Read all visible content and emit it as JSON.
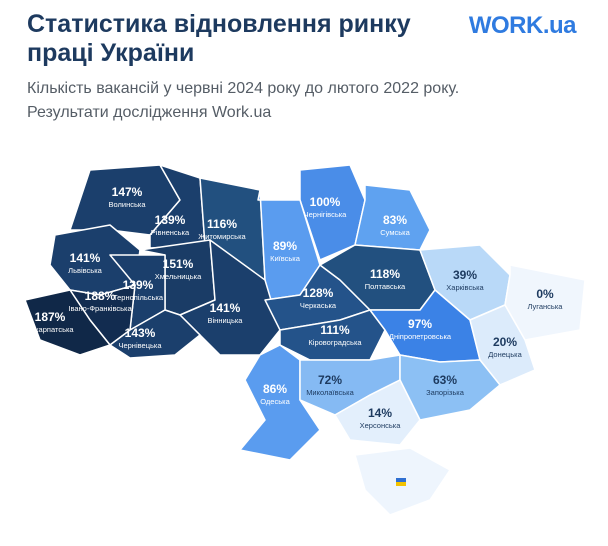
{
  "header": {
    "title": "Статистика відновлення ринку праці України",
    "logo": "WORK.ua",
    "subtitle_lines": [
      "Кількість вакансій у червні 2024 року до лютого 2022 року.",
      "Результати дослідження Work.ua"
    ]
  },
  "regions": [
    {
      "name": "Волинська",
      "value": "147%"
    },
    {
      "name": "Рівненська",
      "value": "139%"
    },
    {
      "name": "Житомирська",
      "value": "116%"
    },
    {
      "name": "Чернігівська",
      "value": "100%"
    },
    {
      "name": "Сумська",
      "value": "83%"
    },
    {
      "name": "Київська",
      "value": "89%"
    },
    {
      "name": "Львівська",
      "value": "141%"
    },
    {
      "name": "Хмельницька",
      "value": "151%"
    },
    {
      "name": "Тернопільська",
      "value": "139%"
    },
    {
      "name": "Івано-Франківська",
      "value": "188%"
    },
    {
      "name": "Закарпатська",
      "value": "187%"
    },
    {
      "name": "Вінницька",
      "value": "141%"
    },
    {
      "name": "Чернівецька",
      "value": "143%"
    },
    {
      "name": "Черкаська",
      "value": "128%"
    },
    {
      "name": "Полтавська",
      "value": "118%"
    },
    {
      "name": "Харківська",
      "value": "39%"
    },
    {
      "name": "Луганська",
      "value": "0%"
    },
    {
      "name": "Кіровоградська",
      "value": "111%"
    },
    {
      "name": "Дніпропетровська",
      "value": "97%"
    },
    {
      "name": "Донецька",
      "value": "20%"
    },
    {
      "name": "Одеська",
      "value": "86%"
    },
    {
      "name": "Миколаївська",
      "value": "72%"
    },
    {
      "name": "Запорізька",
      "value": "63%"
    },
    {
      "name": "Херсонська",
      "value": "14%"
    }
  ]
}
